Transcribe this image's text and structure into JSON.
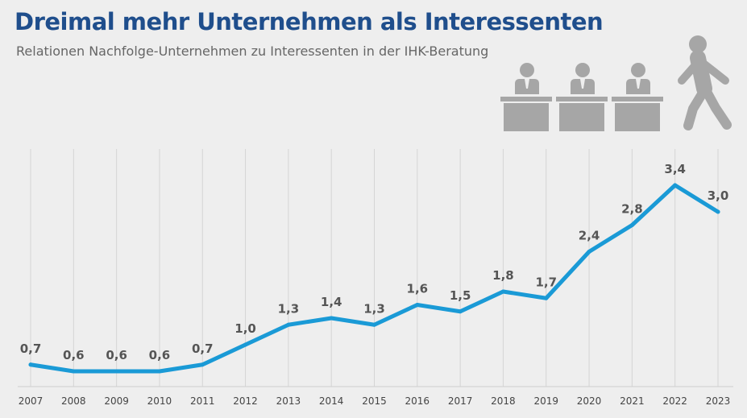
{
  "header": {
    "title": "Dreimal mehr Unternehmen als Interessenten",
    "subtitle": "Relationen Nachfolge-Unternehmen zu Interessenten in der IHK-Beratung"
  },
  "icons": [
    "person-at-desk-icon",
    "person-at-desk-icon",
    "person-at-desk-icon",
    "walking-person-icon"
  ],
  "colors": {
    "title": "#1f4e8c",
    "line": "#1a9ad6",
    "icon": "#a6a6a6",
    "grid": "#d4d4d4",
    "background": "#eeeeee"
  },
  "chart_data": {
    "type": "line",
    "title": "",
    "xlabel": "",
    "ylabel": "",
    "categories": [
      "2007",
      "2008",
      "2009",
      "2010",
      "2011",
      "2012",
      "2013",
      "2014",
      "2015",
      "2016",
      "2017",
      "2018",
      "2019",
      "2020",
      "2021",
      "2022",
      "2023"
    ],
    "values": [
      0.7,
      0.6,
      0.6,
      0.6,
      0.7,
      1.0,
      1.3,
      1.4,
      1.3,
      1.6,
      1.5,
      1.8,
      1.7,
      2.4,
      2.8,
      3.4,
      3.0
    ],
    "labels": [
      "0,7",
      "0,6",
      "0,6",
      "0,6",
      "0,7",
      "1,0",
      "1,3",
      "1,4",
      "1,3",
      "1,6",
      "1,5",
      "1,8",
      "1,7",
      "2,4",
      "2,8",
      "3,4",
      "3,0"
    ],
    "ylim": [
      0,
      3.6
    ],
    "grid": "vertical"
  }
}
